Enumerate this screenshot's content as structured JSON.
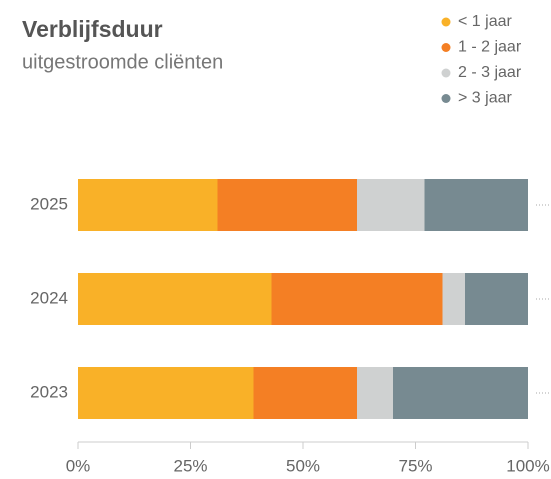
{
  "chart_data": {
    "type": "stacked-bar-horizontal",
    "title": "Verblijfsduur",
    "subtitle": "uitgestroomde cliënten",
    "categories": [
      "2025",
      "2024",
      "2023"
    ],
    "series": [
      {
        "name": "< 1 jaar",
        "color": "#f9b128",
        "values": [
          31,
          43,
          39
        ]
      },
      {
        "name": "1 - 2 jaar",
        "color": "#f47f24",
        "values": [
          31,
          38,
          23
        ]
      },
      {
        "name": "2 - 3 jaar",
        "color": "#cfd1d1",
        "values": [
          15,
          5,
          8
        ]
      },
      {
        "name": "> 3 jaar",
        "color": "#778a91",
        "values": [
          23,
          14,
          30
        ]
      }
    ],
    "xlim": [
      0,
      100
    ],
    "xticks": [
      {
        "value": 0,
        "label": "0%"
      },
      {
        "value": 25,
        "label": "25%"
      },
      {
        "value": 50,
        "label": "50%"
      },
      {
        "value": 75,
        "label": "75%"
      },
      {
        "value": 100,
        "label": "100%"
      }
    ],
    "legend": "top-right"
  }
}
